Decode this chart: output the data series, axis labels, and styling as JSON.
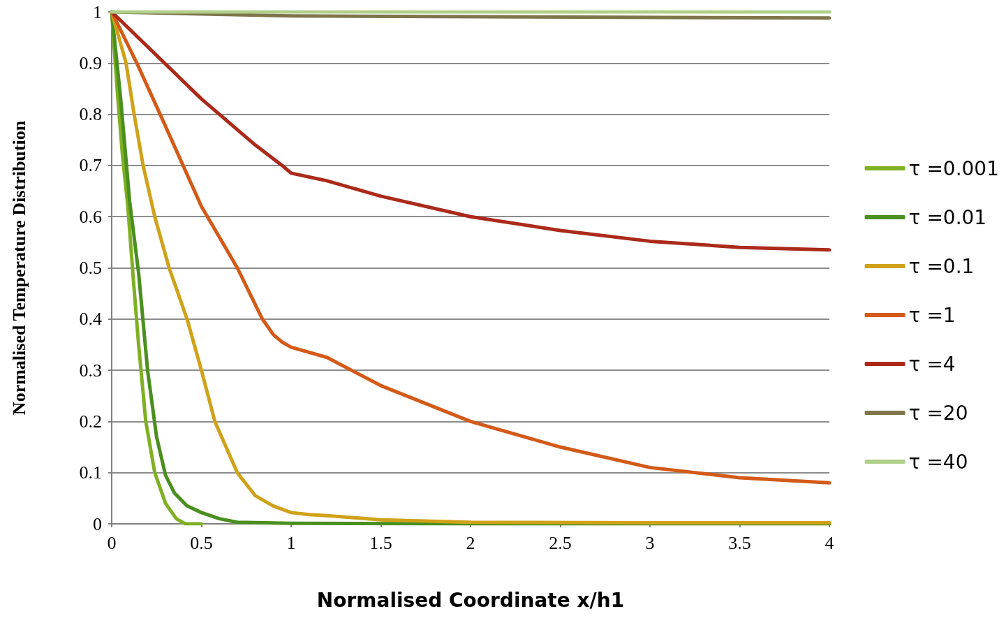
{
  "chart_data": {
    "type": "line",
    "xlabel": "Normalised Coordinate x/h1",
    "ylabel": "Normalised Temperature Distribution",
    "xlim": [
      0,
      4
    ],
    "xticks": [
      0,
      0.5,
      1,
      1.5,
      2,
      2.5,
      3,
      3.5,
      4
    ],
    "ylim": [
      0,
      1
    ],
    "yticks": [
      0,
      0.1,
      0.2,
      0.3,
      0.4,
      0.5,
      0.6,
      0.7,
      0.8,
      0.9,
      1
    ],
    "grid": "y",
    "legend": "right",
    "marker": "none",
    "line_style": "solid",
    "series": [
      {
        "name": "τ =0.001",
        "color": "#7fb024",
        "x": [
          0,
          0.03,
          0.06,
          0.09,
          0.12,
          0.15,
          0.19,
          0.24,
          0.3,
          0.36,
          0.41,
          0.5
        ],
        "values": [
          1,
          0.85,
          0.72,
          0.62,
          0.48,
          0.35,
          0.2,
          0.1,
          0.04,
          0.01,
          0,
          0
        ]
      },
      {
        "name": "τ =0.01",
        "color": "#4a8f1f",
        "x": [
          0,
          0.05,
          0.1,
          0.15,
          0.2,
          0.25,
          0.3,
          0.35,
          0.42,
          0.5,
          0.6,
          0.7,
          1,
          2,
          4
        ],
        "values": [
          1,
          0.83,
          0.63,
          0.49,
          0.3,
          0.17,
          0.095,
          0.06,
          0.035,
          0.022,
          0.01,
          0.003,
          0.001,
          0,
          0
        ]
      },
      {
        "name": "τ =0.1",
        "color": "#d0a21a",
        "x": [
          0,
          0.08,
          0.125,
          0.175,
          0.24,
          0.32,
          0.42,
          0.5,
          0.575,
          0.7,
          0.8,
          0.9,
          1,
          1.1,
          1.2,
          1.5,
          2,
          3,
          4
        ],
        "values": [
          1,
          0.9,
          0.8,
          0.7,
          0.6,
          0.5,
          0.4,
          0.3,
          0.2,
          0.1,
          0.055,
          0.035,
          0.022,
          0.018,
          0.016,
          0.008,
          0.003,
          0.002,
          0.002
        ]
      },
      {
        "name": "τ =1",
        "color": "#d35a18",
        "x": [
          0,
          0.14,
          0.27,
          0.5,
          0.7,
          0.84,
          0.9,
          0.95,
          1,
          1.2,
          1.5,
          2,
          2.5,
          3,
          3.5,
          4
        ],
        "values": [
          1,
          0.9,
          0.8,
          0.62,
          0.5,
          0.4,
          0.37,
          0.355,
          0.345,
          0.325,
          0.27,
          0.2,
          0.15,
          0.11,
          0.09,
          0.08
        ]
      },
      {
        "name": "τ =4",
        "color": "#ab2a1a",
        "x": [
          0,
          0.5,
          0.8,
          0.95,
          1,
          1.2,
          1.5,
          2,
          2.5,
          3,
          3.5,
          4
        ],
        "values": [
          1,
          0.83,
          0.74,
          0.7,
          0.685,
          0.67,
          0.64,
          0.6,
          0.573,
          0.552,
          0.54,
          0.535
        ]
      },
      {
        "name": "τ =20",
        "color": "#7f754b",
        "x": [
          0,
          1,
          4
        ],
        "values": [
          1,
          0.992,
          0.988
        ]
      },
      {
        "name": "τ =40",
        "color": "#b0d08a",
        "x": [
          0,
          4
        ],
        "values": [
          1,
          1
        ]
      }
    ]
  }
}
